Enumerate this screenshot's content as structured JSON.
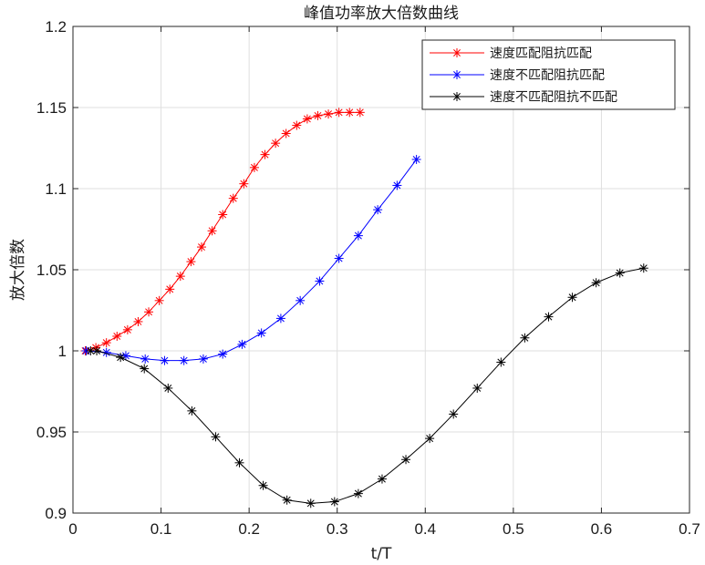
{
  "chart_data": {
    "type": "line",
    "title": "峰值功率放大倍数曲线",
    "xlabel": "t/T",
    "ylabel": "放大倍数",
    "xlim": [
      0,
      0.7
    ],
    "ylim": [
      0.9,
      1.2
    ],
    "xticks": [
      0,
      0.1,
      0.2,
      0.3,
      0.4,
      0.5,
      0.6,
      0.7
    ],
    "xtick_labels": [
      "0",
      "0.1",
      "0.2",
      "0.3",
      "0.4",
      "0.5",
      "0.6",
      "0.7"
    ],
    "yticks": [
      0.9,
      0.95,
      1.0,
      1.05,
      1.1,
      1.15,
      1.2
    ],
    "ytick_labels": [
      "0.9",
      "0.95",
      "1",
      "1.05",
      "1.1",
      "1.15",
      "1.2"
    ],
    "grid": true,
    "legend_position": "top-right",
    "marker": "asterisk",
    "series": [
      {
        "name": "速度匹配阻抗匹配",
        "color": "#ff0000",
        "x": [
          0.014,
          0.026,
          0.038,
          0.05,
          0.062,
          0.074,
          0.086,
          0.098,
          0.11,
          0.122,
          0.134,
          0.146,
          0.158,
          0.17,
          0.182,
          0.194,
          0.206,
          0.218,
          0.23,
          0.242,
          0.254,
          0.266,
          0.278,
          0.29,
          0.302,
          0.314,
          0.326
        ],
        "y": [
          1.0,
          1.002,
          1.005,
          1.009,
          1.013,
          1.018,
          1.024,
          1.031,
          1.038,
          1.046,
          1.055,
          1.064,
          1.074,
          1.084,
          1.094,
          1.103,
          1.113,
          1.121,
          1.128,
          1.134,
          1.139,
          1.143,
          1.145,
          1.146,
          1.147,
          1.147,
          1.147
        ]
      },
      {
        "name": "速度不匹配阻抗匹配",
        "color": "#0000ff",
        "x": [
          0.015,
          0.038,
          0.06,
          0.082,
          0.104,
          0.126,
          0.148,
          0.17,
          0.192,
          0.214,
          0.236,
          0.258,
          0.28,
          0.302,
          0.324,
          0.346,
          0.368,
          0.39
        ],
        "y": [
          1.0,
          0.999,
          0.997,
          0.995,
          0.994,
          0.994,
          0.995,
          0.998,
          1.004,
          1.011,
          1.02,
          1.031,
          1.043,
          1.057,
          1.071,
          1.087,
          1.102,
          1.118
        ]
      },
      {
        "name": "速度不匹配阻抗不匹配",
        "color": "#000000",
        "x": [
          0.02,
          0.027,
          0.054,
          0.081,
          0.108,
          0.135,
          0.162,
          0.189,
          0.216,
          0.243,
          0.27,
          0.297,
          0.324,
          0.351,
          0.378,
          0.405,
          0.432,
          0.459,
          0.486,
          0.513,
          0.54,
          0.567,
          0.594,
          0.621,
          0.648
        ],
        "y": [
          1.0,
          1.0,
          0.996,
          0.989,
          0.977,
          0.963,
          0.947,
          0.931,
          0.917,
          0.908,
          0.906,
          0.907,
          0.912,
          0.921,
          0.933,
          0.946,
          0.961,
          0.977,
          0.993,
          1.008,
          1.021,
          1.033,
          1.042,
          1.048,
          1.051
        ]
      }
    ]
  }
}
